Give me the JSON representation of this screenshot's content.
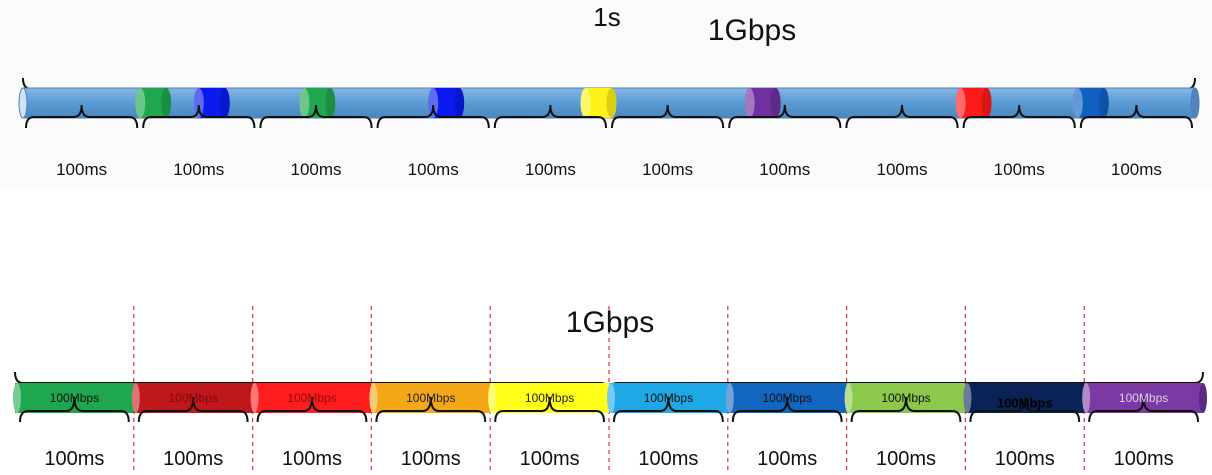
{
  "top": {
    "duration_label": "1s",
    "rate_label": "1Gbps",
    "pipe_color": "#5b9bd5",
    "packets": [
      {
        "position": 0.1,
        "color": "#21a750"
      },
      {
        "position": 0.15,
        "color": "#0b1bf0"
      },
      {
        "position": 0.24,
        "color": "#21a750"
      },
      {
        "position": 0.35,
        "color": "#0b1bf0"
      },
      {
        "position": 0.48,
        "color": "#fff21a"
      },
      {
        "position": 0.62,
        "color": "#7030a0"
      },
      {
        "position": 0.8,
        "color": "#ff1a1a"
      },
      {
        "position": 0.9,
        "color": "#1060c0"
      }
    ],
    "segments": [
      "100ms",
      "100ms",
      "100ms",
      "100ms",
      "100ms",
      "100ms",
      "100ms",
      "100ms",
      "100ms",
      "100ms"
    ]
  },
  "bottom": {
    "rate_label": "1Gbps",
    "slots": [
      {
        "label": "100Mbps",
        "color": "#1fa74f",
        "text_color": "#111111"
      },
      {
        "label": "100Mbps",
        "color": "#c0171c",
        "text_color": "#7a0a0a"
      },
      {
        "label": "100Mbps",
        "color": "#ff1c1c",
        "text_color": "#9a0a0a"
      },
      {
        "label": "100Mbps",
        "color": "#f5a817",
        "text_color": "#222222"
      },
      {
        "label": "100Mbps",
        "color": "#ffff1a",
        "text_color": "#222222"
      },
      {
        "label": "100Mbps",
        "color": "#1ea9e6",
        "text_color": "#111111"
      },
      {
        "label": "100Mbps",
        "color": "#1266bf",
        "text_color": "#111111"
      },
      {
        "label": "100Mbps",
        "color": "#8cc84b",
        "text_color": "#111111"
      },
      {
        "label": "100Mbps",
        "color": "#0b2256",
        "text_color": "#000000"
      },
      {
        "label": "100Mbps",
        "color": "#7b3aa3",
        "text_color": "#ddd0ee"
      }
    ],
    "segments": [
      "100ms",
      "100ms",
      "100ms",
      "100ms",
      "100ms",
      "100ms",
      "100ms",
      "100ms",
      "100ms",
      "100ms"
    ]
  }
}
